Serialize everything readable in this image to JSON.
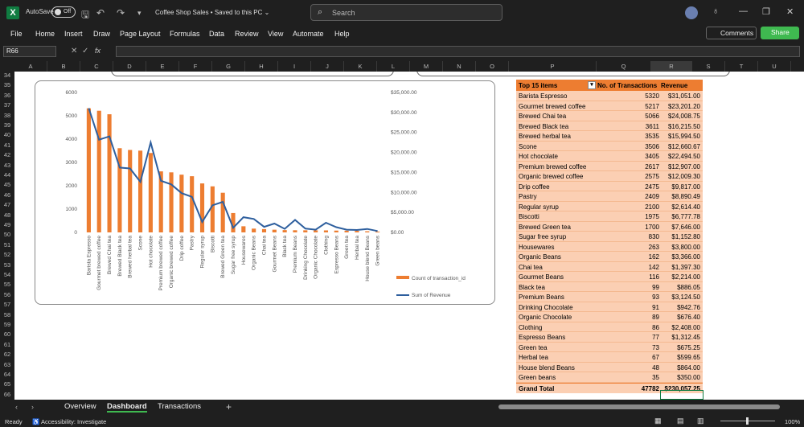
{
  "titlebar": {
    "app_icon": "X",
    "autosave_label": "AutoSave",
    "autosave_state": "Off",
    "doc_title": "Coffee Shop Sales • Saved to this PC ⌄",
    "search_placeholder": "Search"
  },
  "menu": [
    "File",
    "Home",
    "Insert",
    "Draw",
    "Page Layout",
    "Formulas",
    "Data",
    "Review",
    "View",
    "Automate",
    "Help"
  ],
  "buttons": {
    "comments": "Comments",
    "share": "Share"
  },
  "formula_bar": {
    "namebox": "R66",
    "fx": "fx"
  },
  "columns": [
    "A",
    "B",
    "C",
    "D",
    "E",
    "F",
    "G",
    "H",
    "I",
    "J",
    "K",
    "L",
    "M",
    "N",
    "O",
    "P",
    "Q",
    "R",
    "S",
    "T",
    "U"
  ],
  "rows": [
    "34",
    "35",
    "36",
    "37",
    "38",
    "39",
    "40",
    "41",
    "42",
    "43",
    "44",
    "45",
    "46",
    "47",
    "48",
    "49",
    "50",
    "51",
    "52",
    "53",
    "54",
    "55",
    "56",
    "57",
    "58",
    "59",
    "60",
    "61",
    "62",
    "63",
    "64",
    "65",
    "66"
  ],
  "chart_data": {
    "type": "bar",
    "categories": [
      "Barista Espresso",
      "Gourmet brewed coffee",
      "Brewed Chai tea",
      "Brewed Black tea",
      "Brewed herbal tea",
      "Scone",
      "Hot chocolate",
      "Premium brewed coffee",
      "Organic brewed coffee",
      "Drip coffee",
      "Pastry",
      "Regular syrup",
      "Biscotti",
      "Brewed Green tea",
      "Sugar free syrup",
      "Housewares",
      "Organic Beans",
      "Chai tea",
      "Gourmet Beans",
      "Black tea",
      "Premium Beans",
      "Drinking Chocolate",
      "Organic Chocolate",
      "Clothing",
      "Espresso Beans",
      "Green tea",
      "Herbal tea",
      "House blend Beans",
      "Green beans"
    ],
    "series": [
      {
        "name": "Count of transaction_id",
        "values": [
          5320,
          5217,
          5066,
          3611,
          3535,
          3506,
          3405,
          2617,
          2575,
          2475,
          2409,
          2100,
          1975,
          1700,
          830,
          263,
          162,
          142,
          116,
          99,
          93,
          91,
          89,
          86,
          77,
          73,
          67,
          48,
          35
        ],
        "color": "#ed7d31",
        "axis": "left"
      },
      {
        "name": "Sum of Revenue",
        "values": [
          31051,
          23201.2,
          24008.75,
          16215.5,
          15994.5,
          12660.67,
          22494.5,
          12907,
          12009.3,
          9817,
          8890.49,
          2614.4,
          6777.78,
          7646,
          1152.8,
          3800,
          3366,
          1397.3,
          2214,
          886.05,
          3124.5,
          942.76,
          676.4,
          2408,
          1312.45,
          675.25,
          599.65,
          864,
          350
        ],
        "color": "#2e5f9e",
        "axis": "right"
      }
    ],
    "yticks_left": [
      "0",
      "1000",
      "2000",
      "3000",
      "4000",
      "5000",
      "6000"
    ],
    "yticks_right": [
      "$0.00",
      "$5,000.00",
      "$10,000.00",
      "$15,000.00",
      "$20,000.00",
      "$25,000.00",
      "$30,000.00",
      "$35,000.00"
    ],
    "ylim_left": [
      0,
      6000
    ],
    "ylim_right": [
      0,
      35000
    ],
    "legend": "right"
  },
  "pivot": {
    "headers": [
      "Top 15 items",
      "No. of Transactions",
      "Revenue"
    ],
    "rows": [
      [
        "Barista Espresso",
        "5320",
        "$31,051.00"
      ],
      [
        "Gourmet brewed coffee",
        "5217",
        "$23,201.20"
      ],
      [
        "Brewed Chai tea",
        "5066",
        "$24,008.75"
      ],
      [
        "Brewed Black tea",
        "3611",
        "$16,215.50"
      ],
      [
        "Brewed herbal tea",
        "3535",
        "$15,994.50"
      ],
      [
        "Scone",
        "3506",
        "$12,660.67"
      ],
      [
        "Hot chocolate",
        "3405",
        "$22,494.50"
      ],
      [
        "Premium brewed coffee",
        "2617",
        "$12,907.00"
      ],
      [
        "Organic brewed coffee",
        "2575",
        "$12,009.30"
      ],
      [
        "Drip coffee",
        "2475",
        "$9,817.00"
      ],
      [
        "Pastry",
        "2409",
        "$8,890.49"
      ],
      [
        "Regular syrup",
        "2100",
        "$2,614.40"
      ],
      [
        "Biscotti",
        "1975",
        "$6,777.78"
      ],
      [
        "Brewed Green tea",
        "1700",
        "$7,646.00"
      ],
      [
        "Sugar free syrup",
        "830",
        "$1,152.80"
      ],
      [
        "Housewares",
        "263",
        "$3,800.00"
      ],
      [
        "Organic Beans",
        "162",
        "$3,366.00"
      ],
      [
        "Chai tea",
        "142",
        "$1,397.30"
      ],
      [
        "Gourmet Beans",
        "116",
        "$2,214.00"
      ],
      [
        "Black tea",
        "99",
        "$886.05"
      ],
      [
        "Premium Beans",
        "93",
        "$3,124.50"
      ],
      [
        "Drinking Chocolate",
        "91",
        "$942.76"
      ],
      [
        "Organic Chocolate",
        "89",
        "$676.40"
      ],
      [
        "Clothing",
        "86",
        "$2,408.00"
      ],
      [
        "Espresso Beans",
        "77",
        "$1,312.45"
      ],
      [
        "Green tea",
        "73",
        "$675.25"
      ],
      [
        "Herbal tea",
        "67",
        "$599.65"
      ],
      [
        "House blend Beans",
        "48",
        "$864.00"
      ],
      [
        "Green beans",
        "35",
        "$350.00"
      ]
    ],
    "total": [
      "Grand Total",
      "47782",
      "$230,057.25"
    ]
  },
  "tabs": [
    "Overview",
    "Dashboard",
    "Transactions"
  ],
  "status": {
    "ready": "Ready",
    "accessibility": "Accessibility: Investigate",
    "zoom": "100%"
  }
}
